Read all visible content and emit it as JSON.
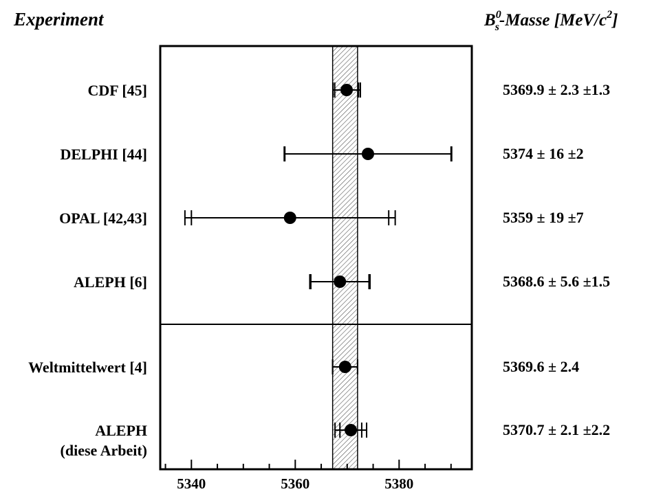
{
  "header": {
    "left_title": "Experiment",
    "right_title_base": "B",
    "right_title_sup": "0",
    "right_title_sub": "s",
    "right_title_rest": "-Masse [MeV/c",
    "right_title_unit_sup": "2",
    "right_title_close": "]"
  },
  "chart_data": {
    "type": "scatter",
    "subtype": "error-bar forest plot",
    "xlim": [
      5334,
      5394
    ],
    "xticks": [
      5340,
      5360,
      5380
    ],
    "x_tick_labels": [
      "5340",
      "5360",
      "5380"
    ],
    "average_band": {
      "low": 5367.2,
      "high": 5372.0,
      "pattern": "diagonal hatching"
    },
    "grid": false,
    "separator_after_row": 3,
    "rows": [
      {
        "label_lines": [
          "CDF [45]"
        ],
        "value": 5369.9,
        "stat": 2.3,
        "syst": 1.3,
        "value_text": "5369.9 ± 2.3 ±1.3"
      },
      {
        "label_lines": [
          "DELPHI [44]"
        ],
        "value": 5374,
        "stat": 16,
        "syst": 2,
        "value_text": "5374 ± 16 ±2"
      },
      {
        "label_lines": [
          "OPAL [42,43]"
        ],
        "value": 5359,
        "stat": 19,
        "syst": 7,
        "value_text": "5359 ± 19 ±7"
      },
      {
        "label_lines": [
          "ALEPH [6]"
        ],
        "value": 5368.6,
        "stat": 5.6,
        "syst": 1.5,
        "value_text": "5368.6 ± 5.6 ±1.5"
      },
      {
        "label_lines": [
          "Weltmittelwert [4]"
        ],
        "value": 5369.6,
        "stat": 2.4,
        "syst": 0,
        "value_text": "5369.6 ± 2.4"
      },
      {
        "label_lines": [
          "ALEPH",
          "(diese Arbeit)"
        ],
        "value": 5370.7,
        "stat": 2.1,
        "syst": 2.2,
        "value_text": "5370.7 ± 2.1 ±2.2"
      }
    ],
    "colors": {
      "marker": "#000000",
      "frame": "#000000",
      "band": "#555555"
    }
  }
}
